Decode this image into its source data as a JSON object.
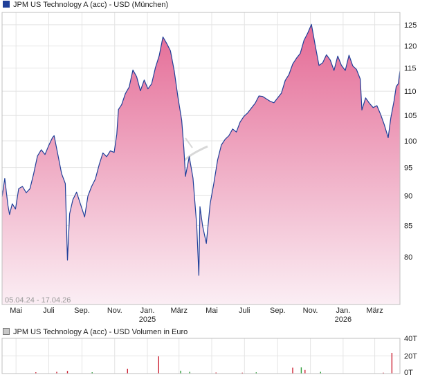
{
  "chart_data": [
    {
      "type": "area",
      "title": "JPM US Technology A (acc) - USD (München)",
      "series_color": "#1f3f99",
      "fill_top_color": "#e46a95",
      "date_range_label": "05.04.24 - 17.04.26",
      "x_tick_labels": [
        "Mai",
        "Juli",
        "Sep.",
        "Nov.",
        "Jan.",
        "März",
        "Mai",
        "Juli",
        "Sep.",
        "Nov.",
        "Jan.",
        "März"
      ],
      "x_tick_dates": [
        "2024-05-01",
        "2024-07-01",
        "2024-09-01",
        "2024-11-01",
        "2025-01-01",
        "2025-03-01",
        "2025-05-01",
        "2025-07-01",
        "2025-09-01",
        "2025-11-01",
        "2026-01-01",
        "2026-03-01"
      ],
      "year_labels": [
        {
          "label": "2025",
          "date": "2025-01-01"
        },
        {
          "label": "2026",
          "date": "2026-01-01"
        }
      ],
      "y_ticks": [
        80,
        85,
        90,
        95,
        100,
        105,
        110,
        115,
        120,
        125
      ],
      "ylim": [
        73,
        128
      ],
      "xlim": [
        "2024-04-05",
        "2026-04-17"
      ],
      "grid": true,
      "points": [
        [
          "2024-04-05",
          89.8
        ],
        [
          "2024-04-10",
          93.0
        ],
        [
          "2024-04-16",
          88.3
        ],
        [
          "2024-04-19",
          86.8
        ],
        [
          "2024-04-24",
          88.6
        ],
        [
          "2024-04-30",
          87.7
        ],
        [
          "2024-05-06",
          91.2
        ],
        [
          "2024-05-13",
          91.6
        ],
        [
          "2024-05-20",
          90.5
        ],
        [
          "2024-05-27",
          91.2
        ],
        [
          "2024-06-03",
          93.9
        ],
        [
          "2024-06-10",
          97.1
        ],
        [
          "2024-06-17",
          98.3
        ],
        [
          "2024-06-24",
          97.4
        ],
        [
          "2024-07-01",
          99.1
        ],
        [
          "2024-07-08",
          100.6
        ],
        [
          "2024-07-11",
          101.0
        ],
        [
          "2024-07-18",
          97.4
        ],
        [
          "2024-07-25",
          93.9
        ],
        [
          "2024-08-01",
          92.1
        ],
        [
          "2024-08-05",
          79.5
        ],
        [
          "2024-08-09",
          86.9
        ],
        [
          "2024-08-15",
          89.3
        ],
        [
          "2024-08-22",
          90.6
        ],
        [
          "2024-08-29",
          88.6
        ],
        [
          "2024-09-06",
          86.4
        ],
        [
          "2024-09-12",
          89.9
        ],
        [
          "2024-09-19",
          91.6
        ],
        [
          "2024-09-26",
          92.9
        ],
        [
          "2024-10-03",
          95.5
        ],
        [
          "2024-10-10",
          97.7
        ],
        [
          "2024-10-17",
          97.0
        ],
        [
          "2024-10-24",
          98.1
        ],
        [
          "2024-10-31",
          97.8
        ],
        [
          "2024-11-05",
          101.3
        ],
        [
          "2024-11-08",
          106.2
        ],
        [
          "2024-11-14",
          107.2
        ],
        [
          "2024-11-21",
          109.5
        ],
        [
          "2024-11-28",
          110.9
        ],
        [
          "2024-12-05",
          114.6
        ],
        [
          "2024-12-12",
          113.1
        ],
        [
          "2024-12-19",
          110.1
        ],
        [
          "2024-12-26",
          112.4
        ],
        [
          "2025-01-02",
          110.5
        ],
        [
          "2025-01-09",
          111.6
        ],
        [
          "2025-01-16",
          115.1
        ],
        [
          "2025-01-23",
          117.8
        ],
        [
          "2025-01-30",
          122.1
        ],
        [
          "2025-02-06",
          120.6
        ],
        [
          "2025-02-13",
          118.9
        ],
        [
          "2025-02-20",
          114.4
        ],
        [
          "2025-02-27",
          108.7
        ],
        [
          "2025-03-06",
          104.0
        ],
        [
          "2025-03-10",
          98.6
        ],
        [
          "2025-03-13",
          93.4
        ],
        [
          "2025-03-20",
          97.0
        ],
        [
          "2025-03-27",
          93.1
        ],
        [
          "2025-04-03",
          85.0
        ],
        [
          "2025-04-07",
          77.2
        ],
        [
          "2025-04-09",
          88.1
        ],
        [
          "2025-04-14",
          84.9
        ],
        [
          "2025-04-21",
          82.1
        ],
        [
          "2025-04-28",
          88.6
        ],
        [
          "2025-05-05",
          92.2
        ],
        [
          "2025-05-12",
          96.4
        ],
        [
          "2025-05-19",
          99.2
        ],
        [
          "2025-05-26",
          100.3
        ],
        [
          "2025-06-02",
          101.0
        ],
        [
          "2025-06-09",
          102.3
        ],
        [
          "2025-06-16",
          101.7
        ],
        [
          "2025-06-23",
          103.7
        ],
        [
          "2025-06-30",
          104.8
        ],
        [
          "2025-07-07",
          105.5
        ],
        [
          "2025-07-14",
          106.5
        ],
        [
          "2025-07-21",
          107.5
        ],
        [
          "2025-07-28",
          109.0
        ],
        [
          "2025-08-04",
          108.9
        ],
        [
          "2025-08-11",
          108.4
        ],
        [
          "2025-08-18",
          107.9
        ],
        [
          "2025-08-25",
          107.6
        ],
        [
          "2025-09-01",
          108.6
        ],
        [
          "2025-09-08",
          109.6
        ],
        [
          "2025-09-15",
          112.3
        ],
        [
          "2025-09-22",
          113.6
        ],
        [
          "2025-09-29",
          115.9
        ],
        [
          "2025-10-06",
          117.2
        ],
        [
          "2025-10-13",
          118.3
        ],
        [
          "2025-10-20",
          121.3
        ],
        [
          "2025-10-27",
          123.0
        ],
        [
          "2025-11-03",
          125.1
        ],
        [
          "2025-11-10",
          120.1
        ],
        [
          "2025-11-17",
          115.6
        ],
        [
          "2025-11-24",
          116.2
        ],
        [
          "2025-12-01",
          118.0
        ],
        [
          "2025-12-08",
          116.8
        ],
        [
          "2025-12-15",
          114.5
        ],
        [
          "2025-12-22",
          117.7
        ],
        [
          "2025-12-29",
          115.6
        ],
        [
          "2026-01-05",
          114.5
        ],
        [
          "2026-01-12",
          117.9
        ],
        [
          "2026-01-19",
          115.5
        ],
        [
          "2026-01-26",
          114.7
        ],
        [
          "2026-02-02",
          112.6
        ],
        [
          "2026-02-05",
          106.1
        ],
        [
          "2026-02-12",
          108.6
        ],
        [
          "2026-02-19",
          107.5
        ],
        [
          "2026-02-26",
          106.6
        ],
        [
          "2026-03-05",
          107.0
        ],
        [
          "2026-03-12",
          105.2
        ],
        [
          "2026-03-19",
          103.1
        ],
        [
          "2026-03-26",
          100.6
        ],
        [
          "2026-03-31",
          104.5
        ],
        [
          "2026-04-06",
          108.0
        ],
        [
          "2026-04-10",
          111.0
        ],
        [
          "2026-04-14",
          111.6
        ],
        [
          "2026-04-17",
          114.4
        ]
      ]
    },
    {
      "type": "bar",
      "title": "JPM US Technology A (acc) - USD Volumen in Euro",
      "y_tick_labels": [
        "0T",
        "20T",
        "40T"
      ],
      "ylim": [
        0,
        40
      ],
      "up_color": "#2e9d3a",
      "down_color": "#cc2233",
      "bars": [
        [
          "2024-06-07",
          1.5,
          "down"
        ],
        [
          "2024-07-16",
          2.0,
          "down"
        ],
        [
          "2024-08-05",
          3.0,
          "down"
        ],
        [
          "2024-09-20",
          1.5,
          "up"
        ],
        [
          "2024-11-25",
          5.5,
          "down"
        ],
        [
          "2025-01-22",
          19.5,
          "down"
        ],
        [
          "2025-03-04",
          3.2,
          "up"
        ],
        [
          "2025-03-21",
          2.0,
          "up"
        ],
        [
          "2025-05-09",
          1.2,
          "down"
        ],
        [
          "2025-06-27",
          1.0,
          "down"
        ],
        [
          "2025-07-23",
          1.4,
          "up"
        ],
        [
          "2025-09-29",
          6.7,
          "down"
        ],
        [
          "2025-10-15",
          7.0,
          "up"
        ],
        [
          "2025-10-22",
          4.1,
          "down"
        ],
        [
          "2025-11-20",
          2.0,
          "up"
        ],
        [
          "2026-03-17",
          1.0,
          "down"
        ],
        [
          "2026-04-02",
          23.5,
          "down"
        ]
      ]
    }
  ]
}
